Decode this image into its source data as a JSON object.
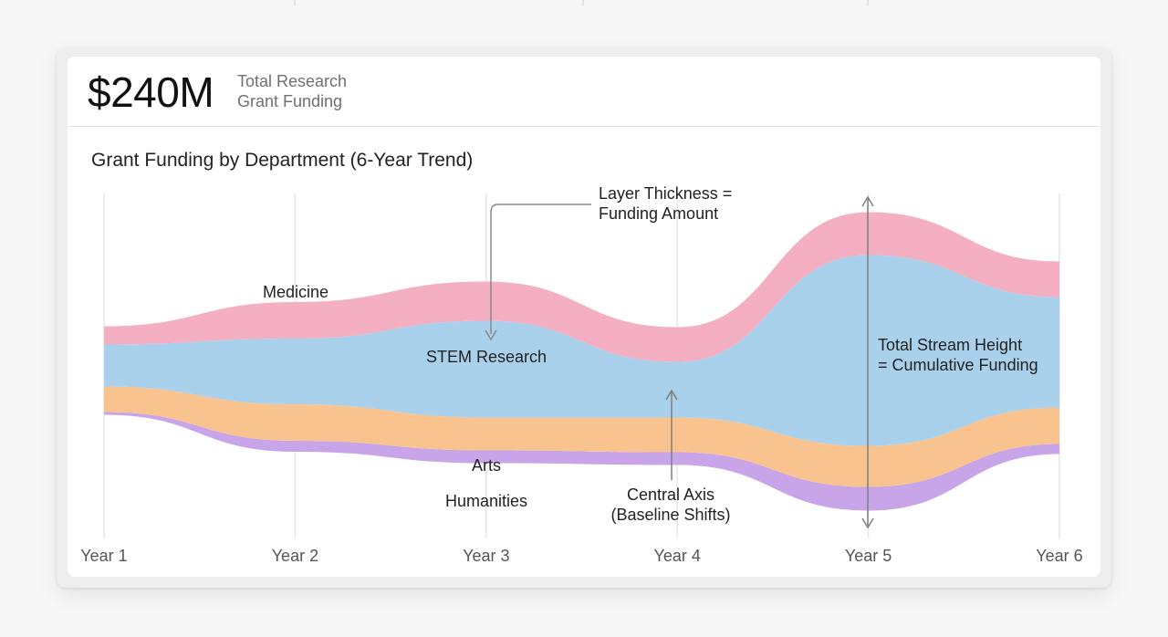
{
  "kpi": {
    "value": "$240M",
    "label": "Total Research Grant Funding"
  },
  "chart_data": {
    "type": "area",
    "subtype": "streamgraph",
    "title": "Grant Funding by Department (6-Year Trend)",
    "categories": [
      "Year 1",
      "Year 2",
      "Year 3",
      "Year 4",
      "Year 5",
      "Year 6"
    ],
    "baseline": "centered-wiggle",
    "grid": "vertical lines at each year",
    "series": [
      {
        "name": "Humanities",
        "color": "#c8a4e8",
        "values": [
          3,
          12,
          14,
          14,
          26,
          11
        ]
      },
      {
        "name": "Arts",
        "color": "#f8c38f",
        "values": [
          28,
          40,
          36,
          38,
          45,
          40
        ]
      },
      {
        "name": "STEM Research",
        "color": "#a9d1ec",
        "values": [
          46,
          72,
          106,
          61,
          209,
          121
        ]
      },
      {
        "name": "Medicine",
        "color": "#f4b0c2",
        "values": [
          20,
          40,
          43,
          38,
          47,
          39
        ]
      }
    ],
    "annotations": [
      {
        "text": "Layer Thickness = Funding Amount"
      },
      {
        "text": "Total Stream Height = Cumulative Funding"
      },
      {
        "text": "Central Axis (Baseline Shifts)"
      }
    ]
  }
}
